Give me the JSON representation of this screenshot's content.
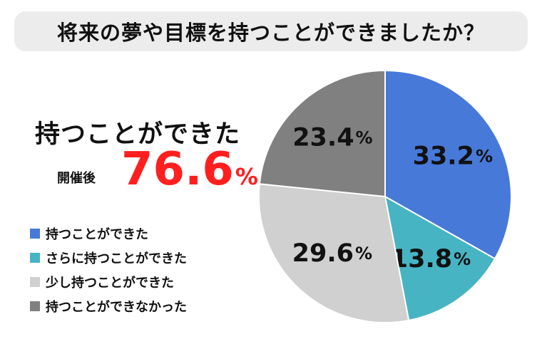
{
  "title": "将来の夢や目標を持つことができましたか？",
  "headline": "持つことができた",
  "after_label": "開催後",
  "summary_value": "76.6",
  "summary_unit": "%",
  "chart_data": {
    "type": "pie",
    "slices": [
      {
        "label": "持つことができた",
        "value": 33.2,
        "color": "#4779d8"
      },
      {
        "label": "さらに持つことができた",
        "value": 13.8,
        "color": "#47b4c4"
      },
      {
        "label": "少し持つことができた",
        "value": 29.6,
        "color": "#d0d0d0"
      },
      {
        "label": "持つことができなかった",
        "value": 23.4,
        "color": "#808080"
      }
    ],
    "unit": "%",
    "legend_position": "left"
  }
}
